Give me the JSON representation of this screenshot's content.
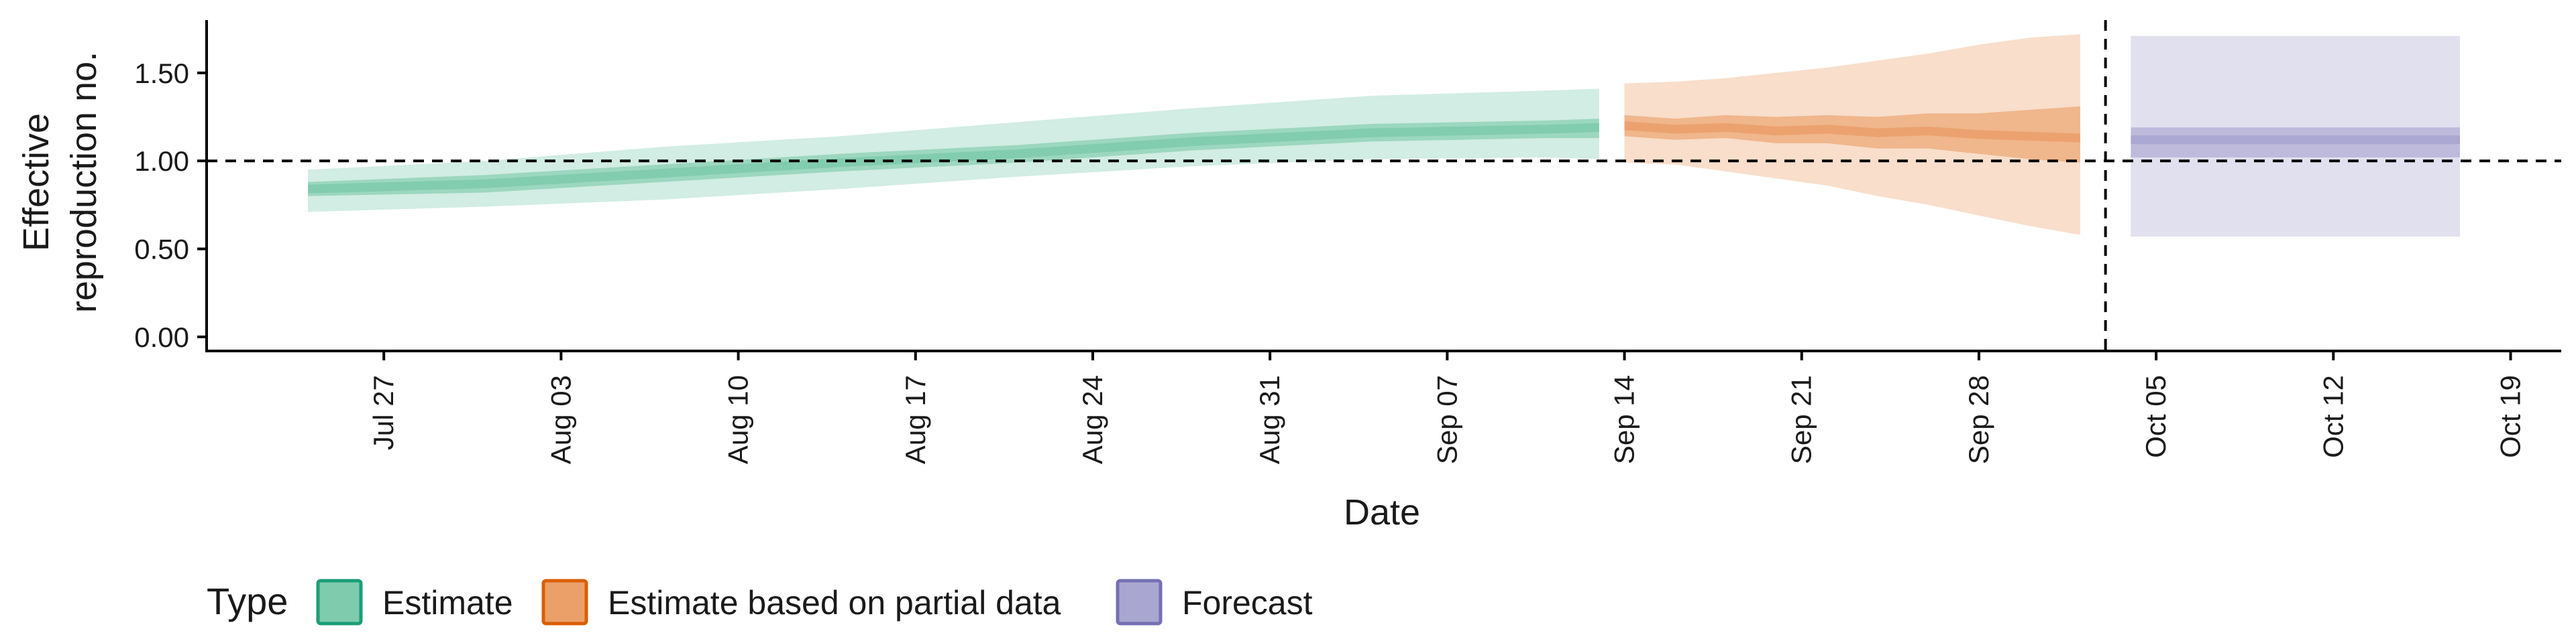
{
  "chart_data": {
    "type": "area",
    "xlabel": "Date",
    "ylabel_lines": [
      "Effective",
      "reproduction no."
    ],
    "x_ticks": [
      "Jul 27",
      "Aug 03",
      "Aug 10",
      "Aug 17",
      "Aug 24",
      "Aug 31",
      "Sep 07",
      "Sep 14",
      "Sep 21",
      "Sep 28",
      "Oct 05",
      "Oct 12",
      "Oct 19"
    ],
    "x_range": [
      "2020-07-20",
      "2020-10-21"
    ],
    "y_ticks": [
      "0.00",
      "0.50",
      "1.00",
      "1.50"
    ],
    "ylim": [
      -0.08,
      1.8
    ],
    "reference_line_y": 1.0,
    "reference_line_x": "2020-10-03",
    "grid": false,
    "legend": {
      "title": "Type",
      "position": "bottom",
      "entries": [
        "Estimate",
        "Estimate based on partial data",
        "Forecast"
      ]
    },
    "colors": {
      "estimate": "#1b9e77",
      "partial": "#d95f02",
      "forecast": "#7570b3",
      "estimate_fill": "#7fcbae",
      "partial_fill": "#eba06a",
      "forecast_fill": "#a9a6d1"
    },
    "series": [
      {
        "name": "Estimate",
        "color_key": "estimate",
        "points": [
          {
            "date": "2020-07-24",
            "median": 0.84,
            "low50": 0.8,
            "high50": 0.88,
            "low90": 0.71,
            "high90": 0.95
          },
          {
            "date": "2020-07-31",
            "median": 0.87,
            "low50": 0.82,
            "high50": 0.92,
            "low90": 0.74,
            "high90": 1.0
          },
          {
            "date": "2020-08-07",
            "median": 0.93,
            "low50": 0.88,
            "high50": 0.98,
            "low90": 0.78,
            "high90": 1.08
          },
          {
            "date": "2020-08-14",
            "median": 0.99,
            "low50": 0.94,
            "high50": 1.04,
            "low90": 0.84,
            "high90": 1.14
          },
          {
            "date": "2020-08-21",
            "median": 1.04,
            "low50": 0.99,
            "high50": 1.09,
            "low90": 0.91,
            "high90": 1.22
          },
          {
            "date": "2020-08-28",
            "median": 1.11,
            "low50": 1.06,
            "high50": 1.16,
            "low90": 0.97,
            "high90": 1.3
          },
          {
            "date": "2020-09-04",
            "median": 1.16,
            "low50": 1.11,
            "high50": 1.21,
            "low90": 1.01,
            "high90": 1.37
          },
          {
            "date": "2020-09-11",
            "median": 1.18,
            "low50": 1.13,
            "high50": 1.23,
            "low90": 1.02,
            "high90": 1.4
          },
          {
            "date": "2020-09-13",
            "median": 1.19,
            "low50": 1.13,
            "high50": 1.24,
            "low90": 1.01,
            "high90": 1.41
          }
        ]
      },
      {
        "name": "Estimate based on partial data",
        "color_key": "partial",
        "points": [
          {
            "date": "2020-09-14",
            "median": 1.2,
            "low50": 1.14,
            "high50": 1.26,
            "low90": 0.99,
            "high90": 1.44
          },
          {
            "date": "2020-09-16",
            "median": 1.18,
            "low50": 1.12,
            "high50": 1.24,
            "low90": 0.98,
            "high90": 1.45
          },
          {
            "date": "2020-09-18",
            "median": 1.19,
            "low50": 1.13,
            "high50": 1.26,
            "low90": 0.94,
            "high90": 1.47
          },
          {
            "date": "2020-09-20",
            "median": 1.17,
            "low50": 1.1,
            "high50": 1.25,
            "low90": 0.9,
            "high90": 1.5
          },
          {
            "date": "2020-09-22",
            "median": 1.18,
            "low50": 1.1,
            "high50": 1.26,
            "low90": 0.86,
            "high90": 1.53
          },
          {
            "date": "2020-09-24",
            "median": 1.16,
            "low50": 1.07,
            "high50": 1.25,
            "low90": 0.8,
            "high90": 1.57
          },
          {
            "date": "2020-09-26",
            "median": 1.17,
            "low50": 1.07,
            "high50": 1.27,
            "low90": 0.75,
            "high90": 1.61
          },
          {
            "date": "2020-09-28",
            "median": 1.15,
            "low50": 1.04,
            "high50": 1.27,
            "low90": 0.69,
            "high90": 1.66
          },
          {
            "date": "2020-09-30",
            "median": 1.14,
            "low50": 1.01,
            "high50": 1.29,
            "low90": 0.63,
            "high90": 1.7
          },
          {
            "date": "2020-10-02",
            "median": 1.13,
            "low50": 0.99,
            "high50": 1.31,
            "low90": 0.58,
            "high90": 1.72
          }
        ]
      },
      {
        "name": "Forecast",
        "color_key": "forecast",
        "points": [
          {
            "date": "2020-10-04",
            "median": 1.12,
            "low50": 1.02,
            "high50": 1.19,
            "low90": 0.57,
            "high90": 1.71
          },
          {
            "date": "2020-10-17",
            "median": 1.12,
            "low50": 1.02,
            "high50": 1.19,
            "low90": 0.57,
            "high90": 1.71
          }
        ]
      }
    ]
  }
}
